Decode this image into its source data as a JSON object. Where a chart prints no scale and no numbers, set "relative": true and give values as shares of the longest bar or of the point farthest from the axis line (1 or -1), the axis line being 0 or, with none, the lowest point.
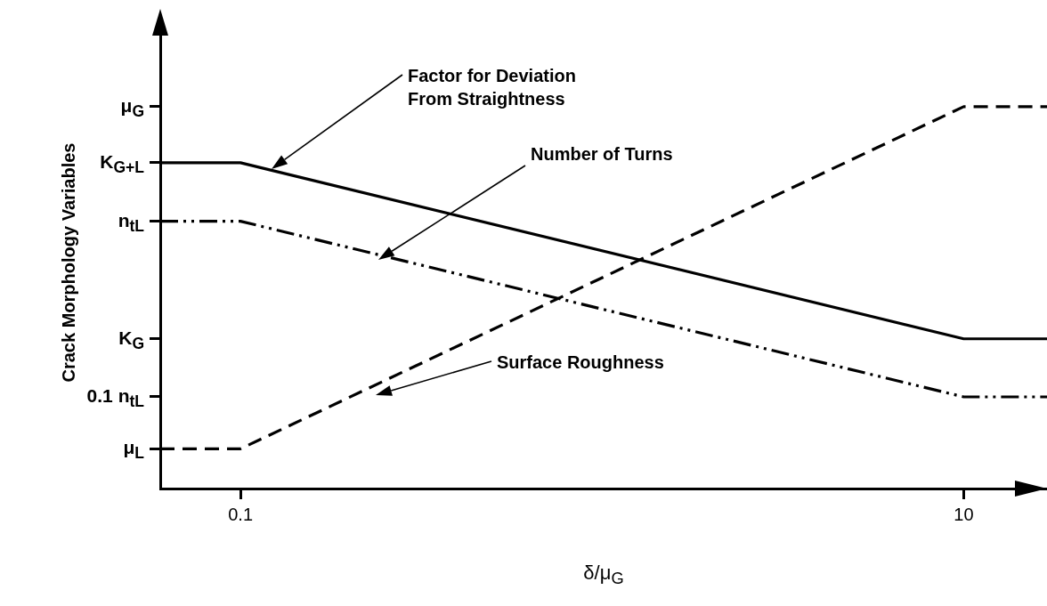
{
  "chart_data": {
    "type": "line",
    "xlabel": "δ/μ$_{G}$",
    "ylabel": "Crack Morphology Variables",
    "relative": true,
    "log": "x",
    "xlim": [
      0.06,
      17
    ],
    "xticks": [
      0.1,
      10
    ],
    "annotations": [
      "μ$_{G}$",
      "K$_{G+L}$",
      "n$_{tL}$",
      "K$_{G}$",
      "0.1 n$_{tL}$",
      "μ$_{L}$"
    ],
    "grid": false,
    "legend": false,
    "marker": "none",
    "series": [
      {
        "name": "Factor for Deviation\nFrom Straightness",
        "color": "#000000",
        "line_style": "solid",
        "x": [
          0.06,
          0.1,
          10,
          17
        ],
        "values": [
          0.853,
          0.853,
          0.392,
          0.392
        ]
      },
      {
        "name": "Number of Turns",
        "color": "#000000",
        "line_style": "dotted",
        "x": [
          0.06,
          0.1,
          10,
          17
        ],
        "values": [
          0.7,
          0.7,
          0.24,
          0.24
        ]
      },
      {
        "name": "Surface Roughness",
        "color": "#000000",
        "line_style": "dashed",
        "x": [
          0.06,
          0.1,
          10,
          17
        ],
        "values": [
          0.104,
          0.104,
          1,
          1
        ]
      }
    ]
  }
}
